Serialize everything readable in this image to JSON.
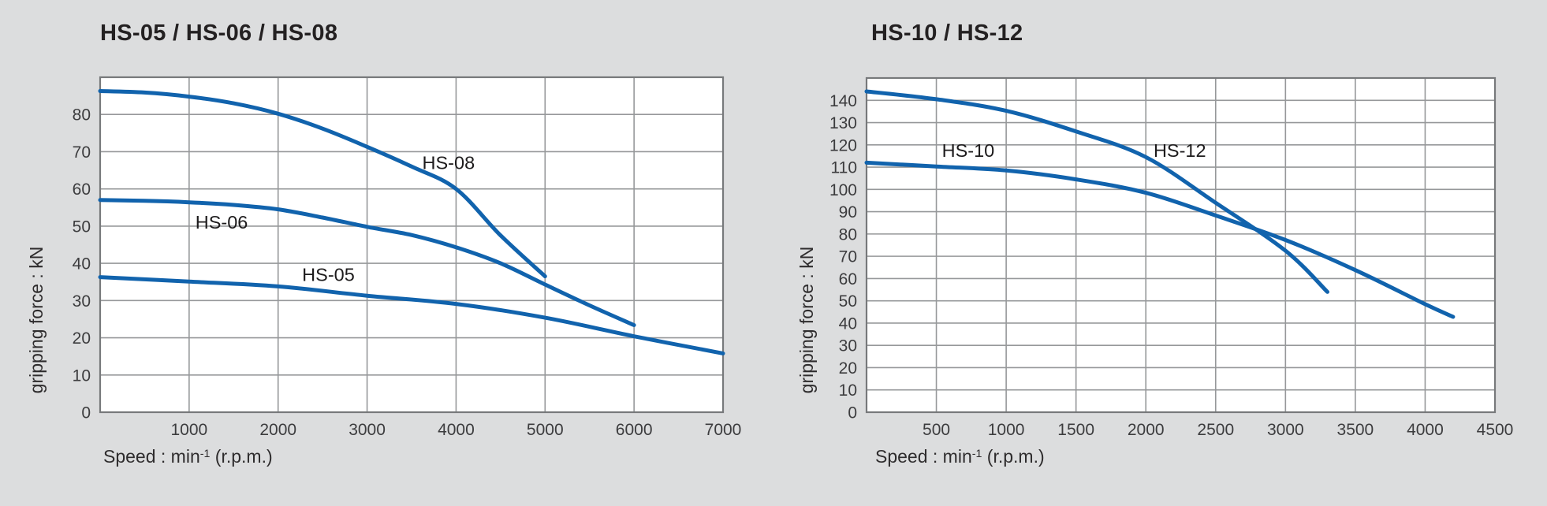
{
  "page": {
    "background": "#dcddde",
    "plot_background": "#ffffff",
    "curve_color": "#1163ad",
    "grid_color": "#96989a",
    "border_color": "#77797b",
    "tick_color": "#3c3c3e",
    "label_color": "#1d1b1c"
  },
  "chart_data": [
    {
      "type": "line",
      "title": "HS-05 / HS-06 / HS-08",
      "xlabel": {
        "pre": "Speed : min",
        "sup": "-1",
        "post": " (r.p.m.)"
      },
      "ylabel": "gripping force : kN",
      "xlim": [
        0,
        7000
      ],
      "ylim": [
        0,
        90
      ],
      "xticks": [
        0,
        1000,
        2000,
        3000,
        4000,
        5000,
        6000,
        7000
      ],
      "yticks": [
        0,
        10,
        20,
        30,
        40,
        50,
        60,
        70,
        80
      ],
      "grid": true,
      "legend": "inline-labels",
      "series": [
        {
          "name": "HS-08",
          "x": [
            0,
            500,
            1000,
            1500,
            2000,
            2500,
            3000,
            3500,
            4000,
            4500,
            5000
          ],
          "y": [
            86.3,
            85.9,
            84.8,
            83.0,
            80.2,
            76.2,
            71.3,
            66.0,
            60.0,
            47.5,
            36.5
          ],
          "label": {
            "text": "HS-08",
            "x": 3620,
            "y": 67
          }
        },
        {
          "name": "HS-06",
          "x": [
            0,
            500,
            1000,
            1500,
            2000,
            2500,
            3000,
            3500,
            4000,
            4500,
            5000,
            5500,
            6000
          ],
          "y": [
            57.0,
            56.8,
            56.4,
            55.7,
            54.5,
            52.3,
            49.8,
            47.6,
            44.3,
            40.0,
            34.3,
            28.7,
            23.4
          ],
          "label": {
            "text": "HS-06",
            "x": 1070,
            "y": 51
          }
        },
        {
          "name": "HS-05",
          "x": [
            0,
            1000,
            2000,
            3000,
            4000,
            5000,
            6000,
            7000
          ],
          "y": [
            36.3,
            35.1,
            33.8,
            31.3,
            29.1,
            25.4,
            20.4,
            15.8
          ],
          "label": {
            "text": "HS-05",
            "x": 2270,
            "y": 37
          }
        }
      ]
    },
    {
      "type": "line",
      "title": "HS-10 / HS-12",
      "xlabel": {
        "pre": "Speed : min",
        "sup": "-1",
        "post": " (r.p.m.)"
      },
      "ylabel": "gripping force : kN",
      "xlim": [
        0,
        4500
      ],
      "ylim": [
        0,
        150
      ],
      "xticks": [
        0,
        500,
        1000,
        1500,
        2000,
        2500,
        3000,
        3500,
        4000,
        4500
      ],
      "yticks": [
        0,
        10,
        20,
        30,
        40,
        50,
        60,
        70,
        80,
        90,
        100,
        110,
        120,
        130,
        140
      ],
      "grid": true,
      "legend": "inline-labels",
      "series": [
        {
          "name": "HS-12",
          "x": [
            0,
            500,
            1000,
            1500,
            2000,
            2500,
            3000,
            3300
          ],
          "y": [
            144.0,
            140.5,
            135.3,
            126.0,
            114.5,
            94.0,
            72.5,
            54.0
          ],
          "label": {
            "text": "HS-12",
            "x": 2055,
            "y": 117.5
          }
        },
        {
          "name": "HS-10",
          "x": [
            0,
            500,
            1000,
            1500,
            2000,
            2500,
            3000,
            3500,
            4000,
            4200
          ],
          "y": [
            112.0,
            110.3,
            108.5,
            104.5,
            98.5,
            88.3,
            77.3,
            63.8,
            48.5,
            42.8
          ],
          "label": {
            "text": "HS-10",
            "x": 540,
            "y": 117.5
          }
        }
      ]
    }
  ]
}
